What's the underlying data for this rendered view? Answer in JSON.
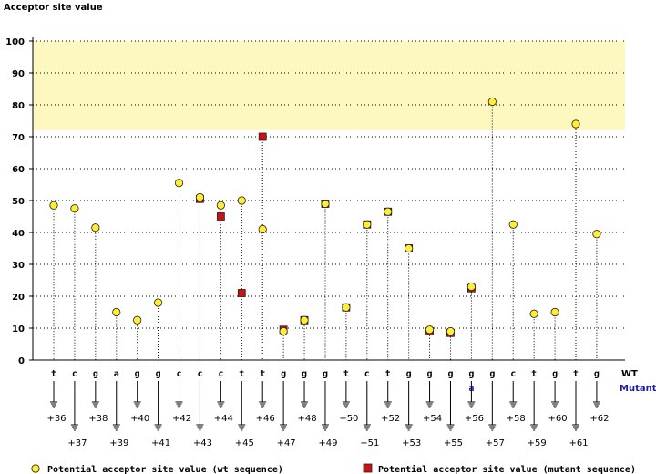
{
  "chart_data": {
    "type": "scatter",
    "title": "Acceptor site value",
    "ylim": [
      0,
      100
    ],
    "yticks": [
      0,
      10,
      20,
      30,
      40,
      50,
      60,
      70,
      80,
      90,
      100
    ],
    "highlight_band": {
      "from": 72,
      "to": 100,
      "color": "#fdf7c0"
    },
    "row_labels": {
      "wt": "WT",
      "mutant": "Mutant"
    },
    "legend": {
      "wt": "Potential acceptor site value (wt sequence)",
      "mutant": "Potential acceptor site value (mutant sequence)"
    },
    "colors": {
      "wt": "#ffee33",
      "mutant": "#cc1111",
      "mutant_text": "#1a1aa6"
    },
    "bases": [
      "t",
      "c",
      "g",
      "a",
      "g",
      "g",
      "c",
      "c",
      "c",
      "t",
      "t",
      "g",
      "g",
      "g",
      "t",
      "c",
      "t",
      "g",
      "g",
      "g",
      "g",
      "g",
      "c",
      "t",
      "g",
      "t",
      "g"
    ],
    "mutant_bases": [
      "",
      "",
      "",
      "",
      "",
      "",
      "",
      "",
      "",
      "",
      "",
      "",
      "",
      "",
      "",
      "",
      "",
      "",
      "",
      "",
      "a",
      "",
      "",
      "",
      "",
      "",
      ""
    ],
    "positions": [
      "+36",
      "+37",
      "+38",
      "+39",
      "+40",
      "+41",
      "+42",
      "+43",
      "+44",
      "+45",
      "+46",
      "+47",
      "+48",
      "+49",
      "+50",
      "+51",
      "+52",
      "+53",
      "+54",
      "+55",
      "+56",
      "+57",
      "+58",
      "+59",
      "+60",
      "+61",
      "+62"
    ],
    "series": [
      {
        "name": "Potential acceptor site value (wt sequence)",
        "values": [
          48.5,
          47.5,
          41.5,
          15,
          12.5,
          18,
          55.5,
          51,
          48.5,
          50,
          41,
          9,
          12.5,
          49,
          16.5,
          42.5,
          46.5,
          35,
          9.5,
          9,
          23,
          81,
          42.5,
          14.5,
          15,
          74,
          39.5
        ]
      },
      {
        "name": "Potential acceptor site value (mutant sequence)",
        "values": [
          null,
          null,
          null,
          null,
          null,
          null,
          null,
          50.5,
          45,
          21,
          70,
          9.5,
          12.5,
          49,
          16.5,
          42.5,
          46.5,
          35,
          9,
          8.5,
          22.5,
          null,
          null,
          null,
          null,
          null,
          null
        ]
      }
    ]
  }
}
